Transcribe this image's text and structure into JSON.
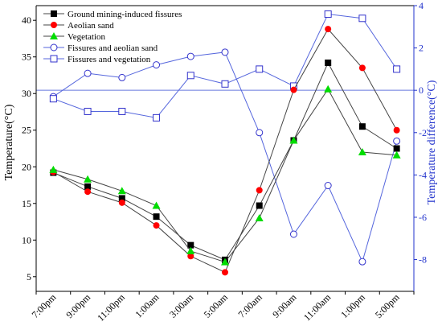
{
  "chart_data": {
    "type": "line",
    "categories": [
      "7:00pm",
      "9:00pm",
      "11:00pm",
      "1:00am",
      "3:00am",
      "5:00am",
      "7:00am",
      "9:00am",
      "11:00am",
      "1:00pm",
      "5:00pm"
    ],
    "ylabel": "Temperature(°C)",
    "y2label": "Temperature difference(°C)",
    "ylim": [
      3,
      42
    ],
    "y2lim": [
      -9.5,
      4
    ],
    "yticks": [
      5,
      10,
      15,
      20,
      25,
      30,
      35,
      40
    ],
    "y2ticks": [
      -8,
      -6,
      -4,
      -2,
      0,
      2,
      4
    ],
    "reference_line_y2": 0,
    "legend_position": "top-left",
    "series": [
      {
        "name": "Ground mining-induced fissures",
        "axis": "left",
        "marker": "square",
        "color": "#000000",
        "values": [
          19.2,
          17.3,
          15.7,
          13.2,
          9.3,
          7.3,
          14.7,
          23.6,
          34.2,
          25.5,
          22.5
        ]
      },
      {
        "name": "Aeolian sand",
        "axis": "left",
        "marker": "circle",
        "color": "#ff0000",
        "values": [
          19.3,
          16.6,
          15.1,
          12.0,
          7.8,
          5.6,
          16.8,
          30.5,
          38.8,
          33.5,
          25.0
        ]
      },
      {
        "name": "Vegetation",
        "axis": "left",
        "marker": "triangle",
        "color": "#00dd00",
        "values": [
          19.6,
          18.3,
          16.7,
          14.7,
          8.5,
          7.0,
          13.0,
          23.6,
          30.6,
          22.0,
          21.6
        ]
      },
      {
        "name": "Fissures and aeolian sand",
        "axis": "right",
        "marker": "open-circle",
        "color": "#3333cc",
        "values": [
          -0.3,
          0.8,
          0.6,
          1.2,
          1.6,
          1.8,
          -2.0,
          -6.8,
          -4.5,
          -8.1,
          -2.4
        ]
      },
      {
        "name": "Fissures and vegetation",
        "axis": "right",
        "marker": "open-square",
        "color": "#3333cc",
        "values": [
          -0.4,
          -1.0,
          -1.0,
          -1.3,
          0.7,
          0.3,
          1.0,
          0.2,
          3.6,
          3.4,
          1.0
        ]
      }
    ]
  }
}
